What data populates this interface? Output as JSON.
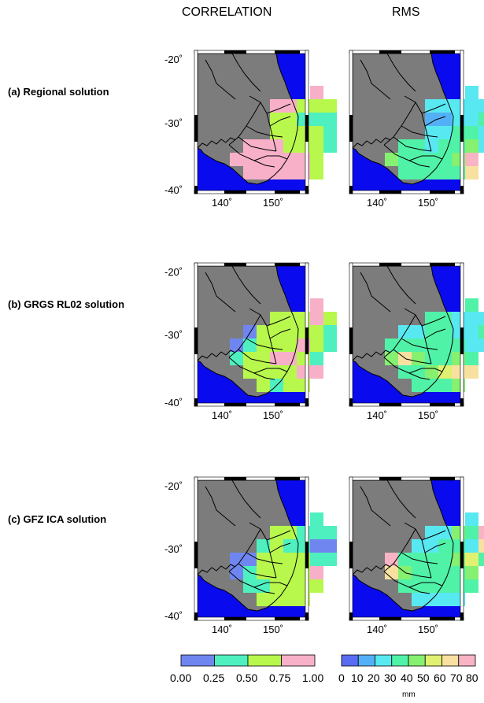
{
  "columns": {
    "correlation": "CORRELATION",
    "rms": "RMS"
  },
  "rows": [
    {
      "id": "a",
      "label": "(a) Regional solution"
    },
    {
      "id": "b",
      "label": "(b) GRGS RL02 solution"
    },
    {
      "id": "c",
      "label": "(c) GFZ ICA solution"
    }
  ],
  "axes": {
    "lat_ticks": [
      "-20˚",
      "-30˚",
      "-40˚"
    ],
    "lon_ticks": [
      "140˚",
      "150˚"
    ]
  },
  "correlation_colorbar": {
    "ticks": [
      "0.00",
      "0.25",
      "0.50",
      "0.75",
      "1.00"
    ],
    "colors": [
      "#6f86f0",
      "#4ef0c0",
      "#b8f84c",
      "#f8b0c8"
    ]
  },
  "rms_colorbar": {
    "ticks": [
      "0",
      "10",
      "20",
      "30",
      "40",
      "50",
      "60",
      "70",
      "80"
    ],
    "colors": [
      "#5a6cf2",
      "#53b0f6",
      "#58e8f2",
      "#50f2a8",
      "#86f070",
      "#e0f070",
      "#f8e0a0",
      "#f8b4c4"
    ],
    "unit": "mm"
  },
  "map_colors": {
    "ocean": "#0a0aee",
    "land": "#7c7c7c",
    "frame": "#000000"
  },
  "panels": [
    {
      "row": "a",
      "column": "correlation",
      "cells": [
        [
          0,
          4,
          3
        ],
        [
          1,
          1,
          3
        ],
        [
          1,
          2,
          3
        ],
        [
          1,
          3,
          2
        ],
        [
          1,
          4,
          2
        ],
        [
          1,
          5,
          2
        ],
        [
          2,
          1,
          2
        ],
        [
          2,
          2,
          2
        ],
        [
          2,
          3,
          1
        ],
        [
          2,
          4,
          1
        ],
        [
          2,
          5,
          1
        ],
        [
          3,
          1,
          2
        ],
        [
          3,
          2,
          2
        ],
        [
          3,
          3,
          2
        ],
        [
          3,
          4,
          2
        ],
        [
          3,
          5,
          1
        ],
        [
          4,
          -1,
          3
        ],
        [
          4,
          0,
          3
        ],
        [
          4,
          1,
          3
        ],
        [
          4,
          2,
          2
        ],
        [
          4,
          3,
          2
        ],
        [
          4,
          4,
          2
        ],
        [
          4,
          5,
          1
        ],
        [
          5,
          -2,
          3
        ],
        [
          5,
          -1,
          3
        ],
        [
          5,
          0,
          3
        ],
        [
          5,
          1,
          3
        ],
        [
          5,
          2,
          3
        ],
        [
          5,
          3,
          3
        ],
        [
          5,
          4,
          2
        ],
        [
          6,
          -1,
          3
        ],
        [
          6,
          0,
          3
        ],
        [
          6,
          1,
          3
        ],
        [
          6,
          2,
          3
        ],
        [
          6,
          3,
          3
        ],
        [
          6,
          4,
          2
        ]
      ]
    },
    {
      "row": "a",
      "column": "rms",
      "cells": [
        [
          0,
          4,
          2
        ],
        [
          1,
          1,
          2
        ],
        [
          1,
          2,
          2
        ],
        [
          1,
          3,
          2
        ],
        [
          1,
          4,
          2
        ],
        [
          1,
          5,
          2
        ],
        [
          2,
          1,
          1
        ],
        [
          2,
          2,
          1
        ],
        [
          2,
          3,
          2
        ],
        [
          2,
          4,
          2
        ],
        [
          2,
          5,
          3
        ],
        [
          3,
          1,
          2
        ],
        [
          3,
          2,
          2
        ],
        [
          3,
          3,
          3
        ],
        [
          3,
          4,
          3
        ],
        [
          3,
          5,
          2
        ],
        [
          4,
          -1,
          3
        ],
        [
          4,
          0,
          3
        ],
        [
          4,
          1,
          2
        ],
        [
          4,
          2,
          3
        ],
        [
          4,
          3,
          3
        ],
        [
          4,
          4,
          4
        ],
        [
          4,
          5,
          2
        ],
        [
          5,
          -2,
          4
        ],
        [
          5,
          -1,
          3
        ],
        [
          5,
          0,
          3
        ],
        [
          5,
          1,
          3
        ],
        [
          5,
          2,
          3
        ],
        [
          5,
          3,
          4
        ],
        [
          5,
          4,
          7
        ],
        [
          6,
          -1,
          3
        ],
        [
          6,
          0,
          3
        ],
        [
          6,
          1,
          3
        ],
        [
          6,
          2,
          3
        ],
        [
          6,
          3,
          3
        ],
        [
          6,
          4,
          6
        ]
      ]
    },
    {
      "row": "b",
      "column": "correlation",
      "cells": [
        [
          0,
          4,
          3
        ],
        [
          1,
          1,
          2
        ],
        [
          1,
          2,
          2
        ],
        [
          1,
          3,
          2
        ],
        [
          1,
          4,
          3
        ],
        [
          1,
          5,
          2
        ],
        [
          2,
          -1,
          0
        ],
        [
          2,
          0,
          2
        ],
        [
          2,
          1,
          2
        ],
        [
          2,
          2,
          2
        ],
        [
          2,
          3,
          2
        ],
        [
          2,
          4,
          2
        ],
        [
          2,
          5,
          1
        ],
        [
          3,
          -2,
          0
        ],
        [
          3,
          -1,
          1
        ],
        [
          3,
          0,
          2
        ],
        [
          3,
          1,
          2
        ],
        [
          3,
          2,
          2
        ],
        [
          3,
          3,
          3
        ],
        [
          3,
          4,
          2
        ],
        [
          3,
          5,
          1
        ],
        [
          4,
          -2,
          1
        ],
        [
          4,
          -1,
          2
        ],
        [
          4,
          0,
          2
        ],
        [
          4,
          1,
          3
        ],
        [
          4,
          2,
          3
        ],
        [
          4,
          3,
          2
        ],
        [
          4,
          4,
          1
        ],
        [
          5,
          -1,
          2
        ],
        [
          5,
          0,
          2
        ],
        [
          5,
          1,
          2
        ],
        [
          5,
          2,
          2
        ],
        [
          5,
          3,
          3
        ],
        [
          5,
          4,
          3
        ],
        [
          6,
          0,
          2
        ],
        [
          6,
          1,
          1
        ],
        [
          6,
          2,
          2
        ],
        [
          6,
          3,
          2
        ]
      ]
    },
    {
      "row": "b",
      "column": "rms",
      "cells": [
        [
          0,
          4,
          3
        ],
        [
          1,
          1,
          3
        ],
        [
          1,
          2,
          3
        ],
        [
          1,
          3,
          2
        ],
        [
          1,
          4,
          2
        ],
        [
          1,
          5,
          2
        ],
        [
          2,
          -1,
          2
        ],
        [
          2,
          0,
          2
        ],
        [
          2,
          1,
          3
        ],
        [
          2,
          2,
          3
        ],
        [
          2,
          3,
          2
        ],
        [
          2,
          4,
          2
        ],
        [
          2,
          5,
          3
        ],
        [
          3,
          -2,
          3
        ],
        [
          3,
          -1,
          3
        ],
        [
          3,
          0,
          3
        ],
        [
          3,
          1,
          3
        ],
        [
          3,
          2,
          3
        ],
        [
          3,
          3,
          3
        ],
        [
          3,
          4,
          2
        ],
        [
          3,
          5,
          2
        ],
        [
          4,
          -2,
          4
        ],
        [
          4,
          -1,
          6
        ],
        [
          4,
          0,
          4
        ],
        [
          4,
          1,
          3
        ],
        [
          4,
          2,
          3
        ],
        [
          4,
          3,
          4
        ],
        [
          4,
          4,
          3
        ],
        [
          5,
          -1,
          3
        ],
        [
          5,
          0,
          3
        ],
        [
          5,
          1,
          4
        ],
        [
          5,
          2,
          5
        ],
        [
          5,
          3,
          6
        ],
        [
          5,
          4,
          6
        ],
        [
          6,
          0,
          3
        ],
        [
          6,
          1,
          3
        ],
        [
          6,
          2,
          3
        ],
        [
          6,
          3,
          4
        ]
      ]
    },
    {
      "row": "c",
      "column": "correlation",
      "cells": [
        [
          0,
          4,
          1
        ],
        [
          1,
          1,
          2
        ],
        [
          1,
          2,
          2
        ],
        [
          1,
          3,
          1
        ],
        [
          1,
          4,
          1
        ],
        [
          1,
          5,
          1
        ],
        [
          2,
          0,
          1
        ],
        [
          2,
          1,
          2
        ],
        [
          2,
          2,
          1
        ],
        [
          2,
          3,
          1
        ],
        [
          2,
          4,
          0
        ],
        [
          2,
          5,
          0
        ],
        [
          3,
          -2,
          0
        ],
        [
          3,
          -1,
          0
        ],
        [
          3,
          0,
          2
        ],
        [
          3,
          1,
          2
        ],
        [
          3,
          2,
          2
        ],
        [
          3,
          3,
          2
        ],
        [
          3,
          4,
          1
        ],
        [
          3,
          5,
          1
        ],
        [
          4,
          -2,
          0
        ],
        [
          4,
          -1,
          1
        ],
        [
          4,
          0,
          2
        ],
        [
          4,
          1,
          2
        ],
        [
          4,
          2,
          2
        ],
        [
          4,
          3,
          2
        ],
        [
          4,
          4,
          3
        ],
        [
          5,
          -1,
          1
        ],
        [
          5,
          0,
          1
        ],
        [
          5,
          1,
          2
        ],
        [
          5,
          2,
          2
        ],
        [
          5,
          3,
          2
        ],
        [
          5,
          4,
          2
        ],
        [
          6,
          0,
          2
        ],
        [
          6,
          1,
          2
        ],
        [
          6,
          2,
          2
        ],
        [
          6,
          3,
          2
        ]
      ]
    },
    {
      "row": "c",
      "column": "rms",
      "cells": [
        [
          0,
          4,
          2
        ],
        [
          1,
          1,
          2
        ],
        [
          1,
          2,
          2
        ],
        [
          1,
          3,
          4
        ],
        [
          1,
          4,
          3
        ],
        [
          1,
          5,
          7
        ],
        [
          2,
          0,
          2
        ],
        [
          2,
          1,
          2
        ],
        [
          2,
          2,
          3
        ],
        [
          2,
          3,
          3
        ],
        [
          2,
          4,
          2
        ],
        [
          2,
          5,
          6
        ],
        [
          3,
          -2,
          7
        ],
        [
          3,
          -1,
          3
        ],
        [
          3,
          0,
          3
        ],
        [
          3,
          1,
          3
        ],
        [
          3,
          2,
          3
        ],
        [
          3,
          3,
          4
        ],
        [
          3,
          4,
          5
        ],
        [
          3,
          5,
          3
        ],
        [
          4,
          -2,
          6
        ],
        [
          4,
          -1,
          4
        ],
        [
          4,
          0,
          3
        ],
        [
          4,
          1,
          3
        ],
        [
          4,
          2,
          3
        ],
        [
          4,
          3,
          3
        ],
        [
          4,
          4,
          4
        ],
        [
          5,
          -1,
          3
        ],
        [
          5,
          0,
          3
        ],
        [
          5,
          1,
          3
        ],
        [
          5,
          2,
          3
        ],
        [
          5,
          3,
          3
        ],
        [
          5,
          4,
          3
        ],
        [
          6,
          0,
          2
        ],
        [
          6,
          1,
          2
        ],
        [
          6,
          2,
          2
        ],
        [
          6,
          3,
          2
        ]
      ]
    }
  ]
}
